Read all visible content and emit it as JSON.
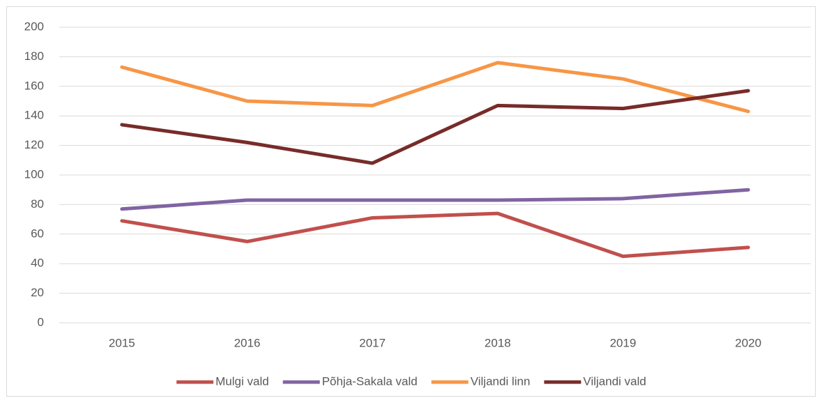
{
  "chart_data": {
    "type": "line",
    "categories": [
      "2015",
      "2016",
      "2017",
      "2018",
      "2019",
      "2020"
    ],
    "series": [
      {
        "name": "Mulgi vald",
        "color": "#c0504d",
        "values": [
          69,
          55,
          71,
          74,
          45,
          51
        ]
      },
      {
        "name": "Põhja-Sakala vald",
        "color": "#8064a2",
        "values": [
          77,
          83,
          83,
          83,
          84,
          90
        ]
      },
      {
        "name": "Viljandi linn",
        "color": "#f79646",
        "values": [
          173,
          150,
          147,
          176,
          165,
          143
        ]
      },
      {
        "name": "Viljandi vald",
        "color": "#772c2a",
        "values": [
          134,
          122,
          108,
          147,
          145,
          157
        ]
      }
    ],
    "ylim": [
      0,
      200
    ],
    "yticks": [
      0,
      20,
      40,
      60,
      80,
      100,
      120,
      140,
      160,
      180,
      200
    ],
    "grid": true,
    "legend": "bottom"
  }
}
